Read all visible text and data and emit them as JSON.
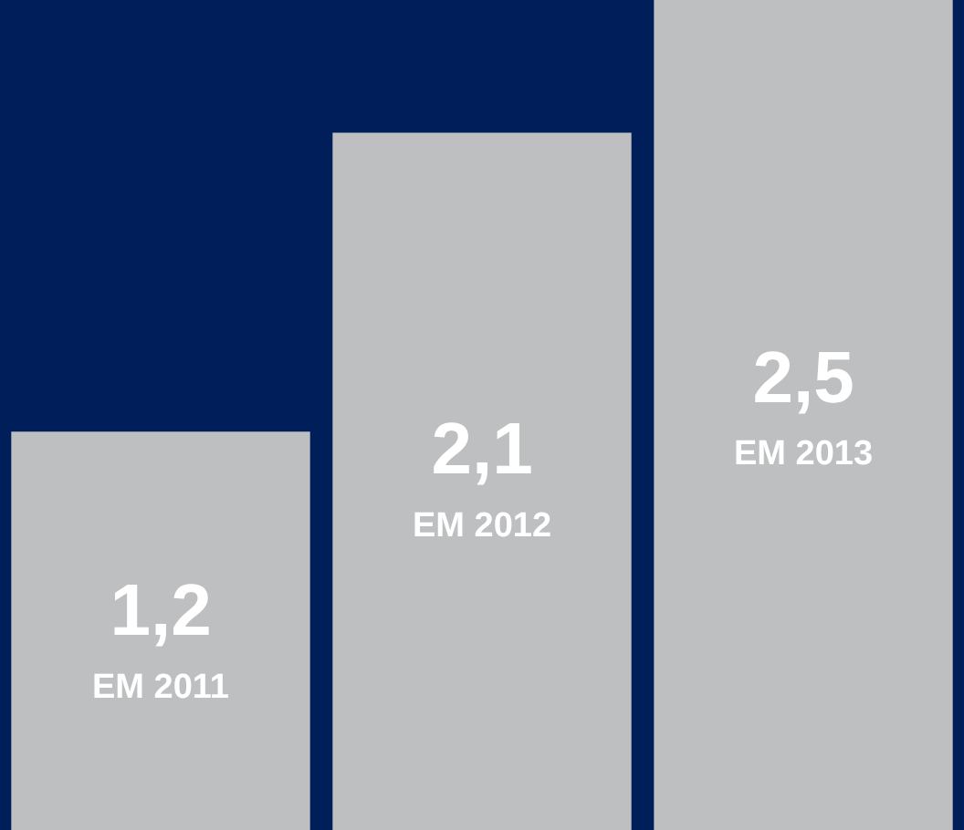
{
  "chart_data": {
    "type": "bar",
    "categories": [
      "EM 2011",
      "EM 2012",
      "EM 2013"
    ],
    "values": [
      1.2,
      2.1,
      2.5
    ],
    "color": "#bebfc1",
    "ylim": [
      0,
      2.5
    ],
    "value_labels": [
      "1,2",
      "2,1",
      "2,5"
    ]
  }
}
